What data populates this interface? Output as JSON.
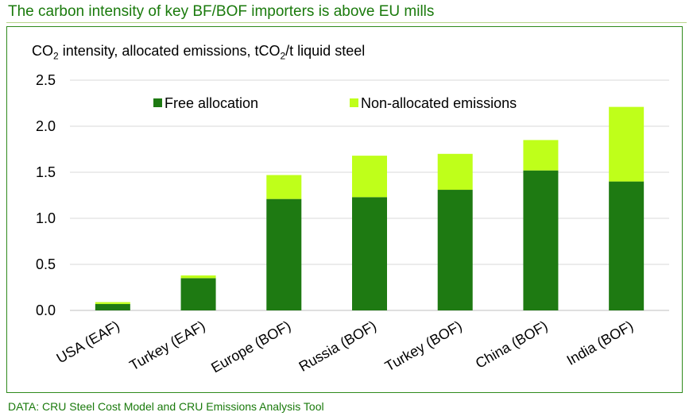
{
  "title": "The carbon intensity of key BF/BOF importers is above EU mills",
  "source": "DATA: CRU Steel Cost Model and CRU Emissions Analysis Tool",
  "chart_data": {
    "type": "bar",
    "stacked": true,
    "ylabel_prefix": "CO",
    "ylabel_sub1": "2",
    "ylabel_mid": " intensity, allocated emissions, tCO",
    "ylabel_sub2": "2",
    "ylabel_suffix": "/t liquid steel",
    "categories": [
      "USA (EAF)",
      "Turkey (EAF)",
      "Europe (BOF)",
      "Russia (BOF)",
      "Turkey (BOF)",
      "China (BOF)",
      "India (BOF)"
    ],
    "series": [
      {
        "name": "Free allocation",
        "color": "#1e7a12",
        "values": [
          0.07,
          0.35,
          1.21,
          1.23,
          1.31,
          1.52,
          1.4
        ]
      },
      {
        "name": "Non-allocated emissions",
        "color": "#bfff1a",
        "values": [
          0.02,
          0.03,
          0.26,
          0.45,
          0.39,
          0.33,
          0.81
        ]
      }
    ],
    "ylim": [
      0,
      2.5
    ],
    "yticks": [
      "0.0",
      "0.5",
      "1.0",
      "1.5",
      "2.0",
      "2.5"
    ],
    "grid": true,
    "legend_position": "top"
  }
}
